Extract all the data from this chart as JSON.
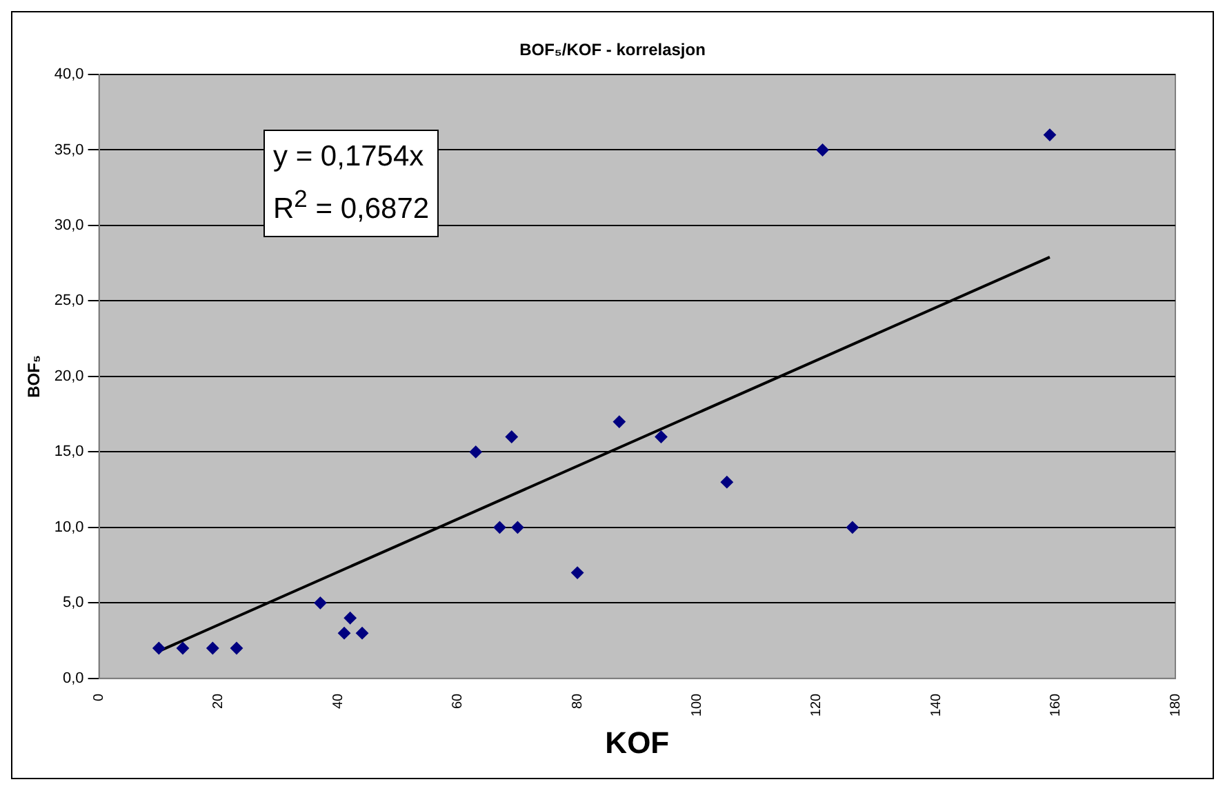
{
  "chart_data": {
    "type": "scatter",
    "title": "BOF₅/KOF - korrelasjon",
    "xlabel": "KOF",
    "ylabel": "BOF₅",
    "annotations": [
      "y = 0,1754x",
      "R$^{2}$ = 0,6872"
    ],
    "series": [
      {
        "color": "#000080",
        "marker": "diamond",
        "x": [
          10,
          14,
          19,
          23,
          37,
          41,
          42,
          44,
          63,
          67,
          69,
          70,
          80,
          87,
          94,
          105,
          121,
          126,
          159
        ],
        "values": [
          2,
          2,
          2,
          2,
          5,
          3,
          4,
          3,
          15,
          10,
          16,
          10,
          7,
          17,
          16,
          13,
          35,
          10,
          36
        ]
      },
      {
        "type": "line",
        "color": "#000000",
        "marker": "none",
        "x": [
          10,
          159
        ],
        "values": [
          1.8,
          27.9
        ]
      }
    ],
    "xlim": [
      0,
      180
    ],
    "xticks": [
      0,
      20,
      40,
      60,
      80,
      100,
      120,
      140,
      160,
      180
    ],
    "ylim": [
      0,
      40
    ],
    "yticks": [
      {
        "value": 0,
        "label": "0,0"
      },
      {
        "value": 5,
        "label": "5,0"
      },
      {
        "value": 10,
        "label": "10,0"
      },
      {
        "value": 15,
        "label": "15,0"
      },
      {
        "value": 20,
        "label": "20,0"
      },
      {
        "value": 25,
        "label": "25,0"
      },
      {
        "value": 30,
        "label": "30,0"
      },
      {
        "value": 35,
        "label": "35,0"
      },
      {
        "value": 40,
        "label": "40,0"
      }
    ],
    "grid": "y",
    "legend": false
  }
}
